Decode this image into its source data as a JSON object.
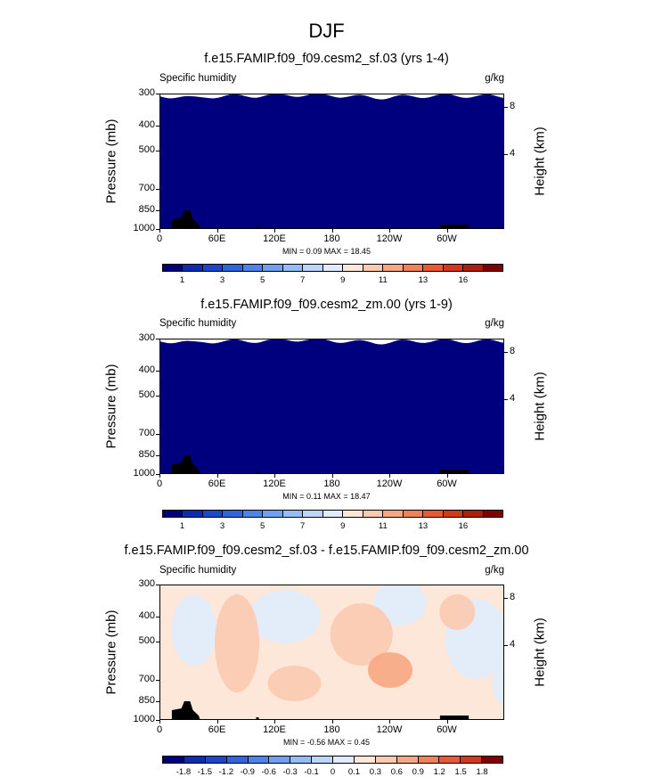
{
  "figure": {
    "season": "DJF"
  },
  "chart_data": [
    {
      "type": "heatmap",
      "title": "f.e15.FAMIP.f09_f09.cesm2_sf.03 (yrs 1-4)",
      "variable": "Specific humidity",
      "units": "g/kg",
      "ylabel": "Pressure (mb)",
      "ylabel_right": "Height (km)",
      "x_ticks": [
        "0",
        "60E",
        "120E",
        "180",
        "120W",
        "60W"
      ],
      "y_ticks": [
        "300",
        "400",
        "500",
        "700",
        "850",
        "1000"
      ],
      "y_right_ticks": [
        "8",
        "4"
      ],
      "min_label": "MIN =  0.09",
      "max_label": "MAX =  18.45",
      "colorbar_labels": [
        "1",
        "3",
        "5",
        "7",
        "9",
        "11",
        "13",
        "16"
      ],
      "colors": [
        "#00007f",
        "#0b2db0",
        "#1a48c8",
        "#2f66dc",
        "#4d84ea",
        "#6fa0f2",
        "#96bcf7",
        "#bcd5fa",
        "#e0ecfc",
        "#fde7d9",
        "#fbcab0",
        "#f7a782",
        "#f0825a",
        "#e65a35",
        "#cf3a1d",
        "#ab200d",
        "#800000"
      ],
      "annotation": "map of longitude vs pressure"
    },
    {
      "type": "heatmap",
      "title": "f.e15.FAMIP.f09_f09.cesm2_zm.00 (yrs 1-9)",
      "variable": "Specific humidity",
      "units": "g/kg",
      "ylabel": "Pressure (mb)",
      "ylabel_right": "Height (km)",
      "x_ticks": [
        "0",
        "60E",
        "120E",
        "180",
        "120W",
        "60W"
      ],
      "y_ticks": [
        "300",
        "400",
        "500",
        "700",
        "850",
        "1000"
      ],
      "y_right_ticks": [
        "8",
        "4"
      ],
      "min_label": "MIN =  0.11",
      "max_label": "MAX =  18.47",
      "colorbar_labels": [
        "1",
        "3",
        "5",
        "7",
        "9",
        "11",
        "13",
        "16"
      ],
      "colors": [
        "#00007f",
        "#0b2db0",
        "#1a48c8",
        "#2f66dc",
        "#4d84ea",
        "#6fa0f2",
        "#96bcf7",
        "#bcd5fa",
        "#e0ecfc",
        "#fde7d9",
        "#fbcab0",
        "#f7a782",
        "#f0825a",
        "#e65a35",
        "#cf3a1d",
        "#ab200d",
        "#800000"
      ]
    },
    {
      "type": "heatmap",
      "title": "f.e15.FAMIP.f09_f09.cesm2_sf.03 - f.e15.FAMIP.f09_f09.cesm2_zm.00",
      "variable": "Specific humidity",
      "units": "g/kg",
      "ylabel": "Pressure (mb)",
      "ylabel_right": "Height (km)",
      "x_ticks": [
        "0",
        "60E",
        "120E",
        "180",
        "120W",
        "60W"
      ],
      "y_ticks": [
        "300",
        "400",
        "500",
        "700",
        "850",
        "1000"
      ],
      "y_right_ticks": [
        "8",
        "4"
      ],
      "min_label": "MIN = -0.56",
      "max_label": "MAX =  0.45",
      "colorbar_labels": [
        "-1.8",
        "-1.5",
        "-1.2",
        "-0.9",
        "-0.6",
        "-0.3",
        "-0.1",
        "0",
        "0.1",
        "0.3",
        "0.6",
        "0.9",
        "1.2",
        "1.5",
        "1.8"
      ],
      "colors": [
        "#00007f",
        "#0b2db0",
        "#1a48c8",
        "#2f66dc",
        "#4d84ea",
        "#6fa0f2",
        "#96bcf7",
        "#bcd5fa",
        "#e0ecfc",
        "#fde7d9",
        "#fbcab0",
        "#f7a782",
        "#f0825a",
        "#e65a35",
        "#cf3a1d",
        "#800000"
      ]
    }
  ]
}
